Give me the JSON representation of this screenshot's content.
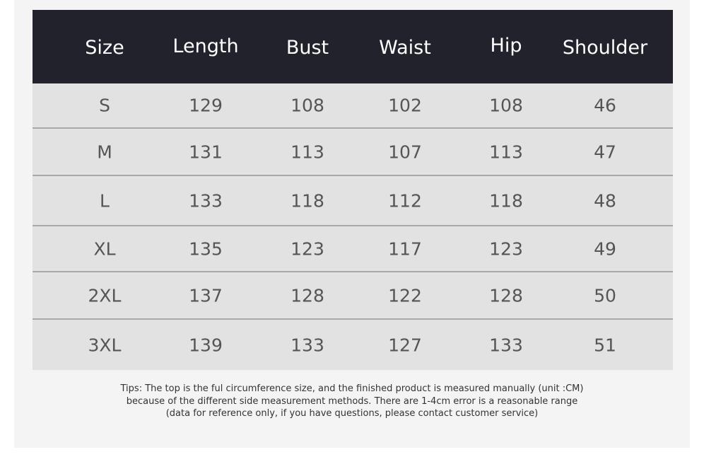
{
  "headers": [
    "Size",
    "Length",
    "Bust",
    "Waist",
    "Hip",
    "Shoulder"
  ],
  "rows": [
    [
      "S",
      "129",
      "108",
      "102",
      "108",
      "46"
    ],
    [
      "M",
      "131",
      "113",
      "107",
      "113",
      "47"
    ],
    [
      "L",
      "133",
      "118",
      "112",
      "118",
      "48"
    ],
    [
      "XL",
      "135",
      "123",
      "117",
      "123",
      "49"
    ],
    [
      "2XL",
      "137",
      "128",
      "122",
      "128",
      "50"
    ],
    [
      "3XL",
      "139",
      "133",
      "127",
      "133",
      "51"
    ]
  ],
  "tips": [
    "Tips: The top is the ful circumference size, and the finished product is measured manually (unit :CM)",
    "because of the different side measurement methods. There are 1-4cm error is a reasonable range",
    "(data for reference only, if you have questions, please contact customer service)"
  ],
  "colors": {
    "header_bg": "#21222c",
    "row_bg": "#e2e2e2",
    "divider": "#a8a8a8"
  }
}
